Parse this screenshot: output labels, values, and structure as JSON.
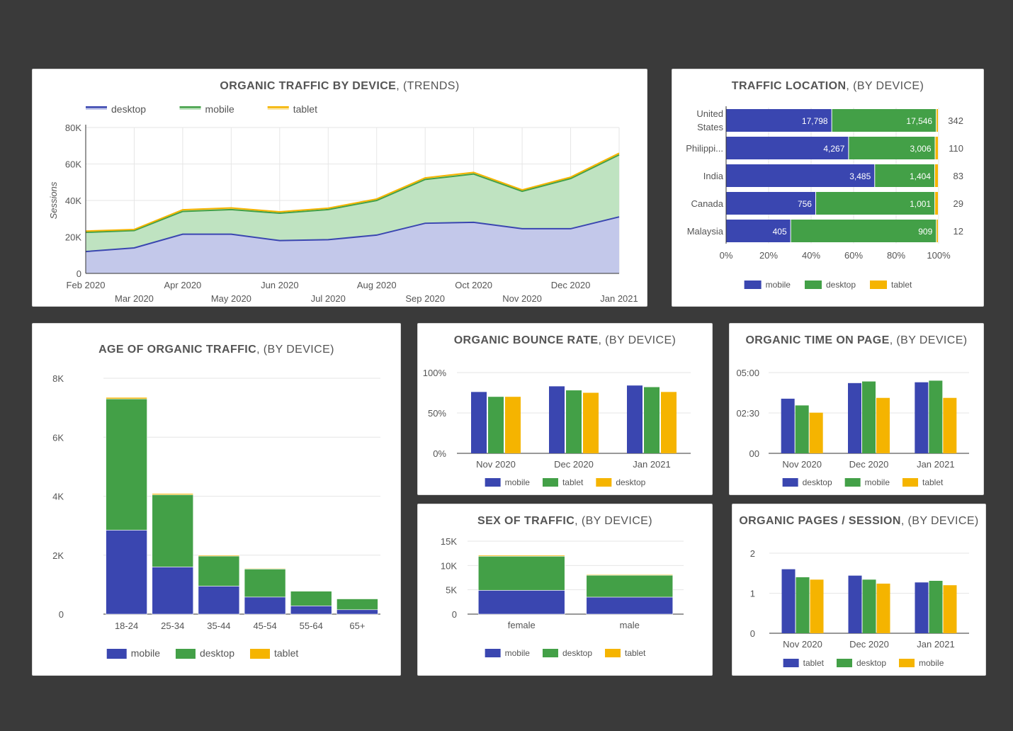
{
  "colors": {
    "blue": "#3a46b0",
    "green": "#43a047",
    "yellow": "#f5b400",
    "blue_fill": "#c3c8ea",
    "green_fill": "#bfe3c1",
    "card_bg": "#ffffff",
    "page_bg": "#3a3a3a"
  },
  "cards": {
    "trend": {
      "title_bold": "ORGANIC TRAFFIC BY DEVICE",
      "title_rest": ", (TRENDS)"
    },
    "location": {
      "title_bold": "TRAFFIC LOCATION",
      "title_rest": ", (BY DEVICE)"
    },
    "age": {
      "title_bold": "AGE OF ORGANIC TRAFFIC",
      "title_rest": ", (BY DEVICE)"
    },
    "bounce": {
      "title_bold": "ORGANIC BOUNCE RATE",
      "title_rest": ", (BY DEVICE)"
    },
    "time": {
      "title_bold": "ORGANIC TIME ON PAGE",
      "title_rest": ", (BY DEVICE)"
    },
    "sex": {
      "title_bold": "SEX OF TRAFFIC",
      "title_rest": ", (BY DEVICE)"
    },
    "pages": {
      "title_bold": "ORGANIC PAGES / SESSION",
      "title_rest": ", (BY DEVICE)"
    }
  },
  "chart_data": [
    {
      "id": "trend",
      "type": "area",
      "stacked": true,
      "title": "ORGANIC TRAFFIC BY DEVICE, (TRENDS)",
      "ylabel": "Sessions",
      "ylim": [
        0,
        80000
      ],
      "yticks": [
        0,
        20000,
        40000,
        60000,
        80000
      ],
      "ytick_labels": [
        "0",
        "20K",
        "40K",
        "60K",
        "80K"
      ],
      "x": [
        "Feb 2020",
        "Mar 2020",
        "Apr 2020",
        "May 2020",
        "Jun 2020",
        "Jul 2020",
        "Aug 2020",
        "Sep 2020",
        "Oct 2020",
        "Nov 2020",
        "Dec 2020",
        "Jan 2021"
      ],
      "series": [
        {
          "name": "desktop",
          "color": "#3a46b0",
          "values": [
            12000,
            14000,
            21500,
            21500,
            18000,
            18500,
            21000,
            27500,
            28000,
            24500,
            24500,
            31000
          ]
        },
        {
          "name": "mobile",
          "color": "#43a047",
          "values": [
            10500,
            9500,
            12500,
            13500,
            15000,
            16500,
            19000,
            24000,
            26500,
            20500,
            27500,
            34000
          ]
        },
        {
          "name": "tablet",
          "color": "#f5b400",
          "values": [
            700,
            600,
            900,
            900,
            800,
            800,
            800,
            900,
            900,
            800,
            800,
            900
          ]
        }
      ],
      "legend": "top-left",
      "grid": true
    },
    {
      "id": "location",
      "type": "bar",
      "orientation": "horizontal",
      "stacked_percent": true,
      "title": "TRAFFIC LOCATION, (BY DEVICE)",
      "categories": [
        "United States",
        "Philippi...",
        "India",
        "Canada",
        "Malaysia"
      ],
      "series": [
        {
          "name": "mobile",
          "color": "#3a46b0",
          "values": [
            17798,
            4267,
            3485,
            756,
            405
          ]
        },
        {
          "name": "desktop",
          "color": "#43a047",
          "values": [
            17546,
            3006,
            1404,
            1001,
            909
          ]
        },
        {
          "name": "tablet",
          "color": "#f5b400",
          "values": [
            342,
            110,
            83,
            29,
            12
          ]
        }
      ],
      "value_labels": {
        "mobile": [
          "17,798",
          "4,267",
          "3,485",
          "756",
          "405"
        ],
        "desktop": [
          "17,546",
          "3,006",
          "1,404",
          "1,001",
          "909"
        ],
        "tablet": [
          "342",
          "110",
          "83",
          "29",
          "12"
        ]
      },
      "xticks": [
        "0%",
        "20%",
        "40%",
        "60%",
        "80%",
        "100%"
      ],
      "legend": "bottom"
    },
    {
      "id": "age",
      "type": "bar",
      "stacked": true,
      "title": "AGE OF ORGANIC TRAFFIC, (BY DEVICE)",
      "categories": [
        "18-24",
        "25-34",
        "35-44",
        "45-54",
        "55-64",
        "65+"
      ],
      "ylim": [
        0,
        8000
      ],
      "yticks": [
        0,
        2000,
        4000,
        6000,
        8000
      ],
      "ytick_labels": [
        "0",
        "2K",
        "4K",
        "6K",
        "8K"
      ],
      "series": [
        {
          "name": "mobile",
          "color": "#3a46b0",
          "values": [
            2850,
            1600,
            950,
            580,
            280,
            150
          ]
        },
        {
          "name": "desktop",
          "color": "#43a047",
          "values": [
            4450,
            2450,
            1020,
            950,
            500,
            370
          ]
        },
        {
          "name": "tablet",
          "color": "#f5b400",
          "values": [
            50,
            40,
            30,
            20,
            10,
            10
          ]
        }
      ],
      "legend": "bottom",
      "grid": true
    },
    {
      "id": "bounce",
      "type": "bar",
      "title": "ORGANIC BOUNCE RATE, (BY DEVICE)",
      "categories": [
        "Nov 2020",
        "Dec 2020",
        "Jan 2021"
      ],
      "ylim": [
        0,
        100
      ],
      "yticks": [
        0,
        50,
        100
      ],
      "ytick_labels": [
        "0%",
        "50%",
        "100%"
      ],
      "series": [
        {
          "name": "mobile",
          "color": "#3a46b0",
          "values": [
            76,
            83,
            84
          ]
        },
        {
          "name": "tablet",
          "color": "#43a047",
          "values": [
            70,
            78,
            82
          ]
        },
        {
          "name": "desktop",
          "color": "#f5b400",
          "values": [
            70,
            75,
            76
          ]
        }
      ],
      "legend": "bottom",
      "grid": true
    },
    {
      "id": "time",
      "type": "bar",
      "title": "ORGANIC TIME ON PAGE, (BY DEVICE)",
      "categories": [
        "Nov 2020",
        "Dec 2020",
        "Jan 2021"
      ],
      "ylim": [
        0,
        300
      ],
      "yticks": [
        0,
        150,
        300
      ],
      "ytick_labels": [
        "00",
        "02:30",
        "05:00"
      ],
      "series": [
        {
          "name": "desktop",
          "color": "#3a46b0",
          "values": [
            203,
            261,
            264
          ]
        },
        {
          "name": "mobile",
          "color": "#43a047",
          "values": [
            178,
            267,
            270
          ]
        },
        {
          "name": "tablet",
          "color": "#f5b400",
          "values": [
            151,
            206,
            206
          ]
        }
      ],
      "legend": "bottom",
      "grid": true
    },
    {
      "id": "sex",
      "type": "bar",
      "stacked": true,
      "title": "SEX OF TRAFFIC, (BY DEVICE)",
      "categories": [
        "female",
        "male"
      ],
      "ylim": [
        0,
        15000
      ],
      "yticks": [
        0,
        5000,
        10000,
        15000
      ],
      "ytick_labels": [
        "0",
        "5K",
        "10K",
        "15K"
      ],
      "series": [
        {
          "name": "mobile",
          "color": "#3a46b0",
          "values": [
            4900,
            3500
          ]
        },
        {
          "name": "desktop",
          "color": "#43a047",
          "values": [
            7000,
            4500
          ]
        },
        {
          "name": "tablet",
          "color": "#f5b400",
          "values": [
            200,
            150
          ]
        }
      ],
      "legend": "bottom",
      "grid": true
    },
    {
      "id": "pages",
      "type": "bar",
      "title": "ORGANIC PAGES / SESSION, (BY DEVICE)",
      "categories": [
        "Nov 2020",
        "Dec 2020",
        "Jan 2021"
      ],
      "ylim": [
        0,
        2
      ],
      "yticks": [
        0,
        1,
        2
      ],
      "ytick_labels": [
        "0",
        "1",
        "2"
      ],
      "series": [
        {
          "name": "tablet",
          "color": "#3a46b0",
          "values": [
            1.6,
            1.44,
            1.27
          ]
        },
        {
          "name": "desktop",
          "color": "#43a047",
          "values": [
            1.4,
            1.34,
            1.31
          ]
        },
        {
          "name": "mobile",
          "color": "#f5b400",
          "values": [
            1.34,
            1.24,
            1.2
          ]
        }
      ],
      "legend": "bottom",
      "grid": true
    }
  ]
}
